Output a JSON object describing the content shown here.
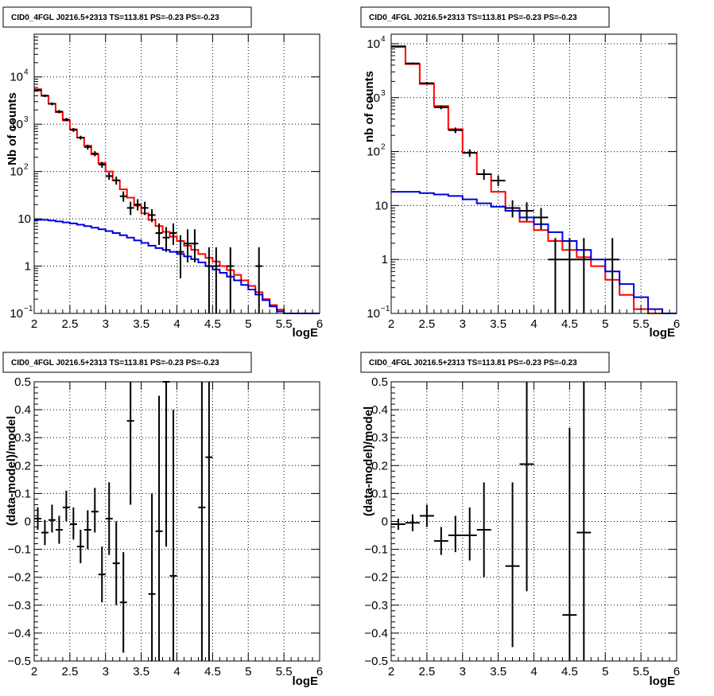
{
  "chart_data": [
    {
      "id": "tl",
      "type": "step-histogram-with-points",
      "title": "CID0_4FGL J0216.5+2313 TS=113.81 PS=-0.23 PS=-0.23",
      "xlabel": "logE",
      "ylabel": "Nb of counts",
      "xlim": [
        2,
        6
      ],
      "ylim": [
        0.1,
        80000
      ],
      "yscale": "log",
      "grid": true,
      "xticks": [
        "2",
        "2.5",
        "3",
        "3.5",
        "4",
        "4.5",
        "5",
        "5.5",
        "6"
      ],
      "yticks": [
        {
          "v": 0.1,
          "label": "10",
          "sup": "−1"
        },
        {
          "v": 1,
          "label": "1",
          "sup": ""
        },
        {
          "v": 10,
          "label": "10",
          "sup": ""
        },
        {
          "v": 100,
          "label": "10",
          "sup": "2"
        },
        {
          "v": 1000,
          "label": "10",
          "sup": "3"
        },
        {
          "v": 10000,
          "label": "10",
          "sup": "4"
        }
      ],
      "bin_width": 0.1,
      "series": [
        {
          "color": "#ff0000",
          "x": [
            2.0,
            2.1,
            2.2,
            2.3,
            2.4,
            2.5,
            2.6,
            2.7,
            2.8,
            2.9,
            3.0,
            3.1,
            3.2,
            3.3,
            3.4,
            3.5,
            3.6,
            3.7,
            3.8,
            3.9,
            4.0,
            4.1,
            4.2,
            4.3,
            4.4,
            4.5,
            4.6,
            4.7,
            4.8,
            4.9,
            5.0,
            5.1,
            5.2,
            5.3,
            5.4,
            5.5,
            5.6,
            5.7,
            5.8,
            5.9
          ],
          "values": [
            5500,
            4000,
            2700,
            1800,
            1200,
            780,
            520,
            350,
            230,
            150,
            100,
            65,
            42,
            28,
            19,
            13,
            9.5,
            7,
            5.3,
            4.2,
            3.4,
            2.7,
            2.2,
            1.8,
            1.5,
            1.25,
            1.0,
            0.82,
            0.65,
            0.5,
            0.38,
            0.28,
            0.2,
            0.15,
            0.12,
            0.1,
            0.1,
            0.1,
            0.1,
            0.1
          ]
        },
        {
          "color": "#0000dd",
          "x": [
            2.0,
            2.1,
            2.2,
            2.3,
            2.4,
            2.5,
            2.6,
            2.7,
            2.8,
            2.9,
            3.0,
            3.1,
            3.2,
            3.3,
            3.4,
            3.5,
            3.6,
            3.7,
            3.8,
            3.9,
            4.0,
            4.1,
            4.2,
            4.3,
            4.4,
            4.5,
            4.6,
            4.7,
            4.8,
            4.9,
            5.0,
            5.1,
            5.2,
            5.3,
            5.4,
            5.5,
            5.6,
            5.7,
            5.8,
            5.9
          ],
          "values": [
            9.5,
            9.5,
            9.2,
            8.8,
            8.4,
            8.0,
            7.5,
            7.0,
            6.5,
            6.0,
            5.5,
            5.0,
            4.5,
            4.0,
            3.5,
            3.1,
            2.7,
            2.4,
            2.2,
            2.0,
            1.8,
            1.6,
            1.4,
            1.2,
            1.0,
            0.85,
            0.72,
            0.6,
            0.5,
            0.4,
            0.32,
            0.25,
            0.19,
            0.14,
            0.11,
            0.1,
            0.1,
            0.1,
            0.1,
            0.1
          ]
        }
      ],
      "points": [
        {
          "x": 2.05,
          "y": 5200,
          "lo": 4900,
          "hi": 5500
        },
        {
          "x": 2.15,
          "y": 4000,
          "lo": 3750,
          "hi": 4250
        },
        {
          "x": 2.25,
          "y": 2700,
          "lo": 2500,
          "hi": 2900
        },
        {
          "x": 2.35,
          "y": 1850,
          "lo": 1700,
          "hi": 2000
        },
        {
          "x": 2.45,
          "y": 1250,
          "lo": 1150,
          "hi": 1360
        },
        {
          "x": 2.55,
          "y": 760,
          "lo": 690,
          "hi": 830
        },
        {
          "x": 2.65,
          "y": 520,
          "lo": 470,
          "hi": 570
        },
        {
          "x": 2.75,
          "y": 330,
          "lo": 290,
          "hi": 370
        },
        {
          "x": 2.85,
          "y": 240,
          "lo": 210,
          "hi": 270
        },
        {
          "x": 2.95,
          "y": 140,
          "lo": 120,
          "hi": 160
        },
        {
          "x": 3.05,
          "y": 80,
          "lo": 67,
          "hi": 95
        },
        {
          "x": 3.15,
          "y": 65,
          "lo": 53,
          "hi": 78
        },
        {
          "x": 3.25,
          "y": 30,
          "lo": 23,
          "hi": 38
        },
        {
          "x": 3.35,
          "y": 17,
          "lo": 12,
          "hi": 23
        },
        {
          "x": 3.45,
          "y": 20,
          "lo": 15,
          "hi": 26
        },
        {
          "x": 3.55,
          "y": 17,
          "lo": 12,
          "hi": 23
        },
        {
          "x": 3.65,
          "y": 12,
          "lo": 8.5,
          "hi": 16
        },
        {
          "x": 3.75,
          "y": 5,
          "lo": 2.8,
          "hi": 8
        },
        {
          "x": 3.85,
          "y": 4,
          "lo": 2,
          "hi": 6.7
        },
        {
          "x": 3.95,
          "y": 5,
          "lo": 2.8,
          "hi": 8
        },
        {
          "x": 4.05,
          "y": 2,
          "lo": 0.55,
          "hi": 4.5
        },
        {
          "x": 4.15,
          "y": 3,
          "lo": 1.2,
          "hi": 6
        },
        {
          "x": 4.25,
          "y": 3,
          "lo": 1.2,
          "hi": 6
        },
        {
          "x": 4.45,
          "y": 1,
          "lo": 0.1,
          "hi": 2.5
        },
        {
          "x": 4.55,
          "y": 1,
          "lo": 0.1,
          "hi": 2.5
        },
        {
          "x": 4.75,
          "y": 1,
          "lo": 0.1,
          "hi": 2.5
        },
        {
          "x": 5.15,
          "y": 1,
          "lo": 0.1,
          "hi": 2.5
        }
      ],
      "point_halfwidth": 0.05
    },
    {
      "id": "tr",
      "type": "step-histogram-with-points",
      "title": "CID0_4FGL J0216.5+2313 TS=113.81 PS=-0.23 PS=-0.23",
      "xlabel": "logE",
      "ylabel": "nb of counts",
      "xlim": [
        2,
        6
      ],
      "ylim": [
        0.1,
        15000
      ],
      "yscale": "log",
      "grid": true,
      "xticks": [
        "2",
        "2.5",
        "3",
        "3.5",
        "4",
        "4.5",
        "5",
        "5.5",
        "6"
      ],
      "yticks": [
        {
          "v": 0.1,
          "label": "10",
          "sup": "−1"
        },
        {
          "v": 1,
          "label": "1",
          "sup": ""
        },
        {
          "v": 10,
          "label": "10",
          "sup": ""
        },
        {
          "v": 100,
          "label": "10",
          "sup": "2"
        },
        {
          "v": 1000,
          "label": "10",
          "sup": "3"
        },
        {
          "v": 10000,
          "label": "10",
          "sup": "4"
        }
      ],
      "bin_width": 0.2,
      "series": [
        {
          "color": "#ff0000",
          "x": [
            2.0,
            2.2,
            2.4,
            2.6,
            2.8,
            3.0,
            3.2,
            3.4,
            3.6,
            3.8,
            4.0,
            4.2,
            4.4,
            4.6,
            4.8,
            5.0,
            5.2,
            5.4,
            5.6,
            5.8
          ],
          "values": [
            9000,
            4200,
            1800,
            700,
            260,
            95,
            38,
            18,
            9,
            5,
            3.5,
            2.2,
            1.5,
            1.1,
            0.75,
            0.42,
            0.22,
            0.12,
            0.1,
            0.1
          ]
        },
        {
          "color": "#0000dd",
          "x": [
            2.0,
            2.2,
            2.4,
            2.6,
            2.8,
            3.0,
            3.2,
            3.4,
            3.6,
            3.8,
            4.0,
            4.2,
            4.4,
            4.6,
            4.8,
            5.0,
            5.2,
            5.4,
            5.6,
            5.8
          ],
          "values": [
            18,
            18,
            17,
            16,
            15,
            13,
            11,
            9.5,
            8,
            6,
            4.5,
            3.2,
            2.2,
            1.5,
            1.0,
            0.6,
            0.35,
            0.2,
            0.12,
            0.1
          ]
        }
      ],
      "points": [
        {
          "x": 2.1,
          "y": 8800,
          "lo": 8500,
          "hi": 9100
        },
        {
          "x": 2.3,
          "y": 4300,
          "lo": 4100,
          "hi": 4500
        },
        {
          "x": 2.5,
          "y": 1850,
          "lo": 1750,
          "hi": 1950
        },
        {
          "x": 2.7,
          "y": 660,
          "lo": 610,
          "hi": 710
        },
        {
          "x": 2.9,
          "y": 250,
          "lo": 220,
          "hi": 280
        },
        {
          "x": 3.1,
          "y": 95,
          "lo": 80,
          "hi": 110
        },
        {
          "x": 3.3,
          "y": 38,
          "lo": 30,
          "hi": 47
        },
        {
          "x": 3.5,
          "y": 29,
          "lo": 23,
          "hi": 36
        },
        {
          "x": 3.7,
          "y": 9,
          "lo": 6,
          "hi": 12.5
        },
        {
          "x": 3.9,
          "y": 8,
          "lo": 5.2,
          "hi": 11.5
        },
        {
          "x": 4.1,
          "y": 6,
          "lo": 3.6,
          "hi": 9
        },
        {
          "x": 4.3,
          "y": 1,
          "lo": 0.1,
          "hi": 2.5
        },
        {
          "x": 4.5,
          "y": 1,
          "lo": 0.1,
          "hi": 2.5
        },
        {
          "x": 4.7,
          "y": 1,
          "lo": 0.1,
          "hi": 2.5
        },
        {
          "x": 5.1,
          "y": 1,
          "lo": 0.1,
          "hi": 2.5
        }
      ],
      "point_halfwidth": 0.1
    },
    {
      "id": "bl",
      "type": "residual-points",
      "title": "CID0_4FGL J0216.5+2313 TS=113.81 PS=-0.23 PS=-0.23",
      "xlabel": "logE",
      "ylabel": "(data-model)/model",
      "xlim": [
        2,
        6
      ],
      "ylim": [
        -0.5,
        0.5
      ],
      "yscale": "linear",
      "grid": true,
      "xticks": [
        "2",
        "2.5",
        "3",
        "3.5",
        "4",
        "4.5",
        "5",
        "5.5",
        "6"
      ],
      "yticks": [
        {
          "v": -0.5,
          "label": "−0.5"
        },
        {
          "v": -0.4,
          "label": "−0.4"
        },
        {
          "v": -0.3,
          "label": "−0.3"
        },
        {
          "v": -0.2,
          "label": "−0.2"
        },
        {
          "v": -0.1,
          "label": "−0.1"
        },
        {
          "v": 0,
          "label": "0"
        },
        {
          "v": 0.1,
          "label": "0.1"
        },
        {
          "v": 0.2,
          "label": "0.2"
        },
        {
          "v": 0.3,
          "label": "0.3"
        },
        {
          "v": 0.4,
          "label": "0.4"
        },
        {
          "v": 0.5,
          "label": "0.5"
        }
      ],
      "point_halfwidth": 0.05,
      "points": [
        {
          "x": 2.05,
          "y": 0.01,
          "lo": -0.03,
          "hi": 0.05
        },
        {
          "x": 2.15,
          "y": -0.04,
          "lo": -0.085,
          "hi": 0.005
        },
        {
          "x": 2.25,
          "y": 0.005,
          "lo": -0.04,
          "hi": 0.06
        },
        {
          "x": 2.35,
          "y": -0.03,
          "lo": -0.08,
          "hi": 0.02
        },
        {
          "x": 2.45,
          "y": 0.05,
          "lo": 0.0,
          "hi": 0.11
        },
        {
          "x": 2.55,
          "y": -0.01,
          "lo": -0.065,
          "hi": 0.05
        },
        {
          "x": 2.65,
          "y": -0.09,
          "lo": -0.15,
          "hi": -0.03
        },
        {
          "x": 2.75,
          "y": -0.03,
          "lo": -0.1,
          "hi": 0.04
        },
        {
          "x": 2.85,
          "y": 0.035,
          "lo": -0.04,
          "hi": 0.12
        },
        {
          "x": 2.95,
          "y": -0.19,
          "lo": -0.29,
          "hi": -0.09
        },
        {
          "x": 3.05,
          "y": 0.01,
          "lo": -0.12,
          "hi": 0.14
        },
        {
          "x": 3.15,
          "y": -0.15,
          "lo": -0.3,
          "hi": 0.0
        },
        {
          "x": 3.25,
          "y": -0.29,
          "lo": -0.47,
          "hi": -0.11
        },
        {
          "x": 3.35,
          "y": 0.36,
          "lo": 0.06,
          "hi": 0.5
        },
        {
          "x": 3.65,
          "y": -0.26,
          "lo": -0.5,
          "hi": 0.1
        },
        {
          "x": 3.75,
          "y": -0.035,
          "lo": -0.5,
          "hi": 0.45
        },
        {
          "x": 3.85,
          "y": 0.5,
          "lo": -0.09,
          "hi": 0.5
        },
        {
          "x": 3.95,
          "y": -0.195,
          "lo": -0.5,
          "hi": 0.4
        },
        {
          "x": 4.35,
          "y": 0.05,
          "lo": -0.5,
          "hi": 0.5
        },
        {
          "x": 4.45,
          "y": 0.23,
          "lo": -0.5,
          "hi": 0.5
        }
      ]
    },
    {
      "id": "br",
      "type": "residual-points",
      "title": "CID0_4FGL J0216.5+2313 TS=113.81 PS=-0.23 PS=-0.23",
      "xlabel": "logE",
      "ylabel": "(data-model)/model",
      "xlim": [
        2,
        6
      ],
      "ylim": [
        -0.5,
        0.5
      ],
      "yscale": "linear",
      "grid": true,
      "xticks": [
        "2",
        "2.5",
        "3",
        "3.5",
        "4",
        "4.5",
        "5",
        "5.5",
        "6"
      ],
      "yticks": [
        {
          "v": -0.5,
          "label": "−0.5"
        },
        {
          "v": -0.4,
          "label": "−0.4"
        },
        {
          "v": -0.3,
          "label": "−0.3"
        },
        {
          "v": -0.2,
          "label": "−0.2"
        },
        {
          "v": -0.1,
          "label": "−0.1"
        },
        {
          "v": 0,
          "label": "0"
        },
        {
          "v": 0.1,
          "label": "0.1"
        },
        {
          "v": 0.2,
          "label": "0.2"
        },
        {
          "v": 0.3,
          "label": "0.3"
        },
        {
          "v": 0.4,
          "label": "0.4"
        },
        {
          "v": 0.5,
          "label": "0.5"
        }
      ],
      "point_halfwidth": 0.1,
      "points": [
        {
          "x": 2.1,
          "y": -0.01,
          "lo": -0.03,
          "hi": 0.01
        },
        {
          "x": 2.3,
          "y": -0.005,
          "lo": -0.035,
          "hi": 0.025
        },
        {
          "x": 2.5,
          "y": 0.02,
          "lo": -0.02,
          "hi": 0.06
        },
        {
          "x": 2.7,
          "y": -0.07,
          "lo": -0.12,
          "hi": -0.02
        },
        {
          "x": 2.9,
          "y": -0.05,
          "lo": -0.11,
          "hi": 0.02
        },
        {
          "x": 3.1,
          "y": -0.05,
          "lo": -0.14,
          "hi": 0.05
        },
        {
          "x": 3.3,
          "y": -0.03,
          "lo": -0.2,
          "hi": 0.14
        },
        {
          "x": 3.7,
          "y": -0.16,
          "lo": -0.45,
          "hi": 0.14
        },
        {
          "x": 3.9,
          "y": 0.205,
          "lo": -0.25,
          "hi": 0.5
        },
        {
          "x": 4.5,
          "y": -0.335,
          "lo": -0.5,
          "hi": 0.335
        },
        {
          "x": 4.7,
          "y": -0.04,
          "lo": -0.5,
          "hi": 0.5
        }
      ]
    }
  ],
  "panels_layout_note": "2x2"
}
